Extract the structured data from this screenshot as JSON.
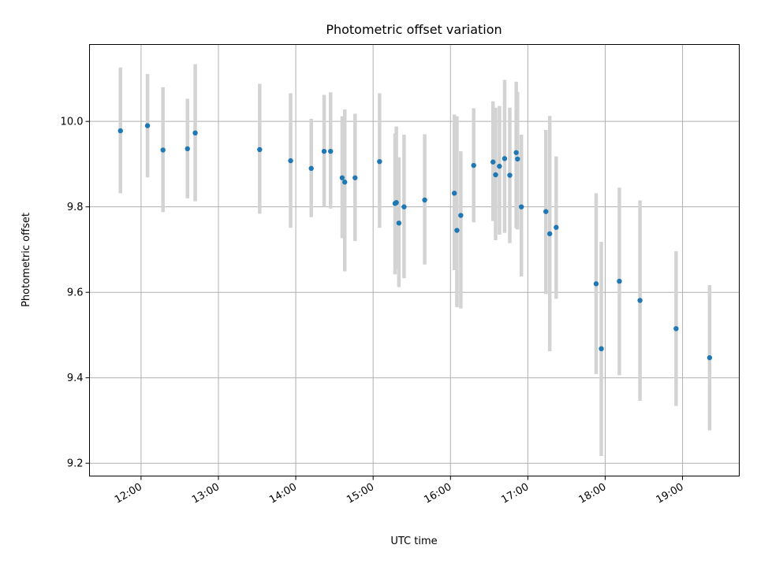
{
  "chart_data": {
    "type": "scatter",
    "title": "Photometric offset variation",
    "xlabel": "UTC time",
    "ylabel": "Photometric offset",
    "x_ticks": [
      "12:00",
      "13:00",
      "14:00",
      "15:00",
      "16:00",
      "17:00",
      "18:00",
      "19:00"
    ],
    "y_ticks": [
      "9.2",
      "9.4",
      "9.6",
      "9.8",
      "10.0"
    ],
    "xlim": [
      "11:20",
      "19:44"
    ],
    "ylim": [
      9.17,
      10.18
    ],
    "grid": true,
    "series": [
      {
        "marker_color": "#1f77b4",
        "errorbar_color": "#d3d3d3",
        "points": [
          {
            "x": "11:44",
            "y": 9.978,
            "lo": 9.832,
            "hi": 10.126
          },
          {
            "x": "12:05",
            "y": 9.99,
            "lo": 9.869,
            "hi": 10.111
          },
          {
            "x": "12:17",
            "y": 9.933,
            "lo": 9.788,
            "hi": 10.08
          },
          {
            "x": "12:36",
            "y": 9.936,
            "lo": 9.82,
            "hi": 10.053
          },
          {
            "x": "12:42",
            "y": 9.973,
            "lo": 9.813,
            "hi": 10.134
          },
          {
            "x": "13:32",
            "y": 9.934,
            "lo": 9.784,
            "hi": 10.088
          },
          {
            "x": "13:56",
            "y": 9.908,
            "lo": 9.751,
            "hi": 10.066
          },
          {
            "x": "14:12",
            "y": 9.89,
            "lo": 9.776,
            "hi": 10.006
          },
          {
            "x": "14:22",
            "y": 9.93,
            "lo": 9.8,
            "hi": 10.062
          },
          {
            "x": "14:27",
            "y": 9.93,
            "lo": 9.796,
            "hi": 10.068
          },
          {
            "x": "14:36",
            "y": 9.868,
            "lo": 9.727,
            "hi": 10.012
          },
          {
            "x": "14:38",
            "y": 9.858,
            "lo": 9.649,
            "hi": 10.028
          },
          {
            "x": "14:46",
            "y": 9.868,
            "lo": 9.72,
            "hi": 10.018
          },
          {
            "x": "15:05",
            "y": 9.906,
            "lo": 9.751,
            "hi": 10.066
          },
          {
            "x": "15:17",
            "y": 9.808,
            "lo": 9.642,
            "hi": 9.972
          },
          {
            "x": "15:18",
            "y": 9.81,
            "lo": 9.655,
            "hi": 9.988
          },
          {
            "x": "15:20",
            "y": 9.762,
            "lo": 9.612,
            "hi": 9.916
          },
          {
            "x": "15:24",
            "y": 9.8,
            "lo": 9.633,
            "hi": 9.969
          },
          {
            "x": "15:40",
            "y": 9.816,
            "lo": 9.665,
            "hi": 9.97
          },
          {
            "x": "16:03",
            "y": 9.832,
            "lo": 9.652,
            "hi": 10.016
          },
          {
            "x": "16:05",
            "y": 9.745,
            "lo": 9.565,
            "hi": 10.012
          },
          {
            "x": "16:08",
            "y": 9.78,
            "lo": 9.562,
            "hi": 9.93
          },
          {
            "x": "16:18",
            "y": 9.897,
            "lo": 9.764,
            "hi": 10.031
          },
          {
            "x": "16:33",
            "y": 9.905,
            "lo": 9.767,
            "hi": 10.047
          },
          {
            "x": "16:35",
            "y": 9.875,
            "lo": 9.722,
            "hi": 10.032
          },
          {
            "x": "16:38",
            "y": 9.895,
            "lo": 9.735,
            "hi": 10.036
          },
          {
            "x": "16:42",
            "y": 9.913,
            "lo": 9.739,
            "hi": 10.097
          },
          {
            "x": "16:46",
            "y": 9.874,
            "lo": 9.715,
            "hi": 10.032
          },
          {
            "x": "16:51",
            "y": 9.927,
            "lo": 9.75,
            "hi": 10.093
          },
          {
            "x": "16:52",
            "y": 9.912,
            "lo": 9.747,
            "hi": 10.069
          },
          {
            "x": "16:55",
            "y": 9.8,
            "lo": 9.637,
            "hi": 9.969
          },
          {
            "x": "17:14",
            "y": 9.789,
            "lo": 9.596,
            "hi": 9.98
          },
          {
            "x": "17:17",
            "y": 9.737,
            "lo": 9.462,
            "hi": 10.013
          },
          {
            "x": "17:22",
            "y": 9.752,
            "lo": 9.585,
            "hi": 9.918
          },
          {
            "x": "17:53",
            "y": 9.62,
            "lo": 9.409,
            "hi": 9.832
          },
          {
            "x": "17:57",
            "y": 9.468,
            "lo": 9.217,
            "hi": 9.718
          },
          {
            "x": "18:11",
            "y": 9.626,
            "lo": 9.406,
            "hi": 9.845
          },
          {
            "x": "18:27",
            "y": 9.581,
            "lo": 9.346,
            "hi": 9.815
          },
          {
            "x": "18:55",
            "y": 9.515,
            "lo": 9.334,
            "hi": 9.696
          },
          {
            "x": "19:21",
            "y": 9.447,
            "lo": 9.277,
            "hi": 9.617
          }
        ]
      }
    ]
  }
}
